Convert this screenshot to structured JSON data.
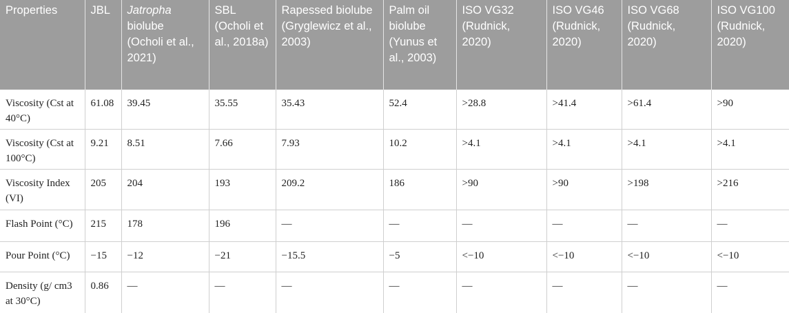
{
  "table": {
    "header": [
      "Properties",
      "JBL",
      {
        "italic": "Jatropha",
        "rest": "biolube (Ocholi et al., 2021)"
      },
      "SBL (Ocholi et al., 2018a)",
      "Rapessed biolube (Gryglewicz et al., 2003)",
      "Palm oil biolube (Yunus et al., 2003)",
      "ISO VG32 (Rudnick, 2020)",
      "ISO VG46 (Rudnick, 2020)",
      "ISO VG68 (Rudnick, 2020)",
      "ISO VG100 (Rudnick, 2020)"
    ],
    "rows": [
      [
        "Viscosity (Cst at 40°C)",
        "61.08",
        "39.45",
        "35.55",
        "35.43",
        "52.4",
        ">28.8",
        ">41.4",
        ">61.4",
        ">90"
      ],
      [
        "Viscosity (Cst at 100°C)",
        "9.21",
        "8.51",
        "7.66",
        "7.93",
        "10.2",
        ">4.1",
        ">4.1",
        ">4.1",
        ">4.1"
      ],
      [
        "Viscosity Index (VI)",
        "205",
        "204",
        "193",
        "209.2",
        "186",
        ">90",
        ">90",
        ">198",
        ">216"
      ],
      [
        "Flash Point (°C)",
        "215",
        "178",
        "196",
        "—",
        "—",
        "—",
        "—",
        "—",
        "—"
      ],
      [
        "Pour Point (°C)",
        "−15",
        "−12",
        "−21",
        "−15.5",
        "−5",
        "<−10",
        "<−10",
        "<−10",
        "<−10"
      ],
      [
        "Density (g/ cm3 at 30°C)",
        "0.86",
        "—",
        "—",
        "—",
        "—",
        "—",
        "—",
        "—",
        "—"
      ]
    ]
  }
}
